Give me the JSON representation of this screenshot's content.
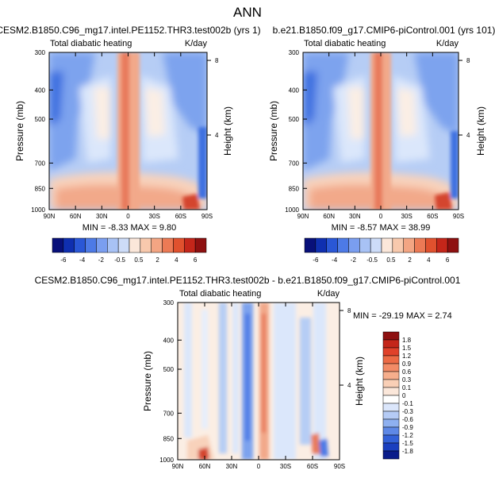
{
  "figure": {
    "title": "ANN"
  },
  "panels": [
    {
      "id": "test",
      "run_title": "CESM2.B1850.C96_mg17.intel.PE1152.THR3.test002b (yrs 1)",
      "variable": "Total diabatic heating",
      "units": "K/day",
      "ylabel": "Pressure (mb)",
      "ylabel_right": "Height (km)",
      "stats": "MIN = -8.33  MAX =  9.80"
    },
    {
      "id": "control",
      "run_title": "b.e21.B1850.f09_g17.CMIP6-piControl.001 (yrs 101)",
      "variable": "Total diabatic heating",
      "units": "K/day",
      "ylabel": "Pressure (mb)",
      "ylabel_right": "Height (km)",
      "stats": "MIN = -8.57  MAX = 38.99"
    },
    {
      "id": "difference",
      "run_title": "CESM2.B1850.C96_mg17.intel.PE1152.THR3.test002b - b.e21.B1850.f09_g17.CMIP6-piControl.001",
      "variable": "Total diabatic heating",
      "units": "K/day",
      "ylabel": "Pressure (mb)",
      "ylabel_right": "Height (km)",
      "stats": "MIN = -29.19  MAX =  2.74"
    }
  ],
  "chart_data": [
    {
      "type": "heatmap",
      "panel": "test",
      "title": "Total diabatic heating",
      "units": "K/day",
      "xlabel": "",
      "ylabel": "Pressure (mb)",
      "x_ticks": [
        "90N",
        "60N",
        "30N",
        "0",
        "30S",
        "60S",
        "90S"
      ],
      "x_tick_values": [
        90,
        60,
        30,
        0,
        -30,
        -60,
        -90
      ],
      "y_ticks": [
        "300",
        "400",
        "500",
        "700",
        "850",
        "1000"
      ],
      "y_tick_values": [
        300,
        400,
        500,
        700,
        850,
        1000
      ],
      "y2_ticks": [
        "8",
        "4"
      ],
      "y2_tick_values": [
        8,
        4
      ],
      "y2label": "Height (km)",
      "xlim": [
        90,
        -90
      ],
      "ylim": [
        1000,
        300
      ],
      "min": -8.33,
      "max": 9.8
    },
    {
      "type": "heatmap",
      "panel": "control",
      "title": "Total diabatic heating",
      "units": "K/day",
      "xlabel": "",
      "ylabel": "Pressure (mb)",
      "x_ticks": [
        "90N",
        "60N",
        "30N",
        "0",
        "30S",
        "60S",
        "90S"
      ],
      "x_tick_values": [
        90,
        60,
        30,
        0,
        -30,
        -60,
        -90
      ],
      "y_ticks": [
        "300",
        "400",
        "500",
        "700",
        "850",
        "1000"
      ],
      "y_tick_values": [
        300,
        400,
        500,
        700,
        850,
        1000
      ],
      "y2_ticks": [
        "8",
        "4"
      ],
      "y2_tick_values": [
        8,
        4
      ],
      "y2label": "Height (km)",
      "xlim": [
        90,
        -90
      ],
      "ylim": [
        1000,
        300
      ],
      "min": -8.57,
      "max": 38.99
    },
    {
      "type": "heatmap",
      "panel": "difference",
      "title": "Total diabatic heating",
      "units": "K/day",
      "xlabel": "",
      "ylabel": "Pressure (mb)",
      "x_ticks": [
        "90N",
        "60N",
        "30N",
        "0",
        "30S",
        "60S",
        "90S"
      ],
      "x_tick_values": [
        90,
        60,
        30,
        0,
        -30,
        -60,
        -90
      ],
      "y_ticks": [
        "300",
        "400",
        "500",
        "700",
        "850",
        "1000"
      ],
      "y_tick_values": [
        300,
        400,
        500,
        700,
        850,
        1000
      ],
      "y2_ticks": [
        "8",
        "4"
      ],
      "y2_tick_values": [
        8,
        4
      ],
      "y2label": "Height (km)",
      "xlim": [
        90,
        -90
      ],
      "ylim": [
        1000,
        300
      ],
      "min": -29.19,
      "max": 2.74
    }
  ],
  "colorbars": {
    "shared": {
      "labels": [
        "-6",
        "-4",
        "-2",
        "-0.5",
        "0.5",
        "2",
        "4",
        "6"
      ],
      "colors": [
        "#08107a",
        "#0f2fb0",
        "#2a57d6",
        "#4d7ae6",
        "#7a9ef0",
        "#a8c2f5",
        "#cddcf8",
        "#fbe7da",
        "#f8c9ad",
        "#f3a583",
        "#ec7a55",
        "#e0512e",
        "#c4261a",
        "#8e1010"
      ]
    },
    "difference": {
      "labels": [
        "1.8",
        "1.5",
        "1.2",
        "0.9",
        "0.6",
        "0.3",
        "0.1",
        "0",
        "-0.1",
        "-0.3",
        "-0.6",
        "-0.9",
        "-1.2",
        "-1.5",
        "-1.8"
      ],
      "colors": [
        "#8e1010",
        "#c4261a",
        "#e0412a",
        "#ec6a45",
        "#f28b66",
        "#f6ae8c",
        "#f9cfb6",
        "#fbe7da",
        "#ffffff",
        "#dbe6fb",
        "#b5cbf5",
        "#8eb0f0",
        "#5e88e6",
        "#3361d8",
        "#1a3fbf",
        "#0b1d8a"
      ]
    },
    "palette": {
      "neg3": "#3e6fe0",
      "neg2": "#7da3ee",
      "neg1": "#b6cdf5",
      "neg0": "#dbe7fb",
      "zero": "#fbeee4",
      "pos1": "#f8d2bb",
      "pos2": "#f2a98a",
      "pos3": "#e87a5b",
      "pos4": "#d4452d"
    }
  }
}
